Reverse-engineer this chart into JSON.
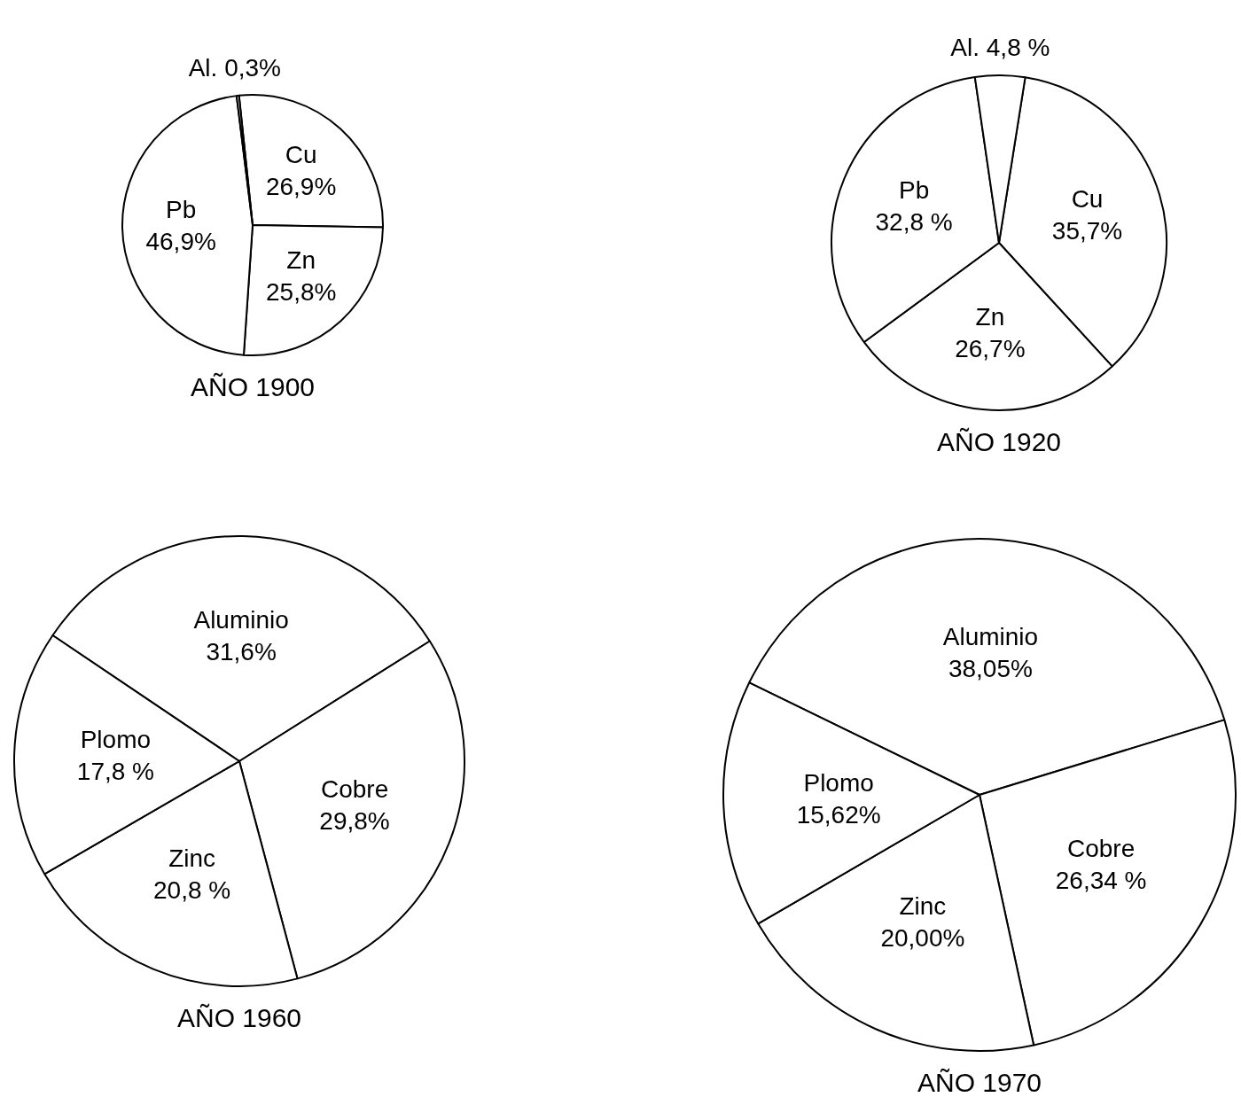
{
  "chart_data": [
    {
      "type": "pie",
      "title": "AÑO 1900",
      "categories": [
        "Cu",
        "Zn",
        "Pb",
        "Al."
      ],
      "values": [
        26.9,
        25.8,
        46.9,
        0.3
      ],
      "value_labels": [
        "26,9%",
        "25,8%",
        "46,9%",
        "0,3%"
      ],
      "colors": [
        "#ffffff",
        "#ffffff",
        "#ffffff",
        "#ffffff"
      ]
    },
    {
      "type": "pie",
      "title": "AÑO 1920",
      "categories": [
        "Cu",
        "Zn",
        "Pb",
        "Al."
      ],
      "values": [
        35.7,
        26.7,
        32.8,
        4.8
      ],
      "value_labels": [
        "35,7%",
        "26,7%",
        "32,8 %",
        "4,8 %"
      ],
      "colors": [
        "#ffffff",
        "#ffffff",
        "#ffffff",
        "#ffffff"
      ]
    },
    {
      "type": "pie",
      "title": "AÑO 1960",
      "categories": [
        "Aluminio",
        "Cobre",
        "Zinc",
        "Plomo"
      ],
      "values": [
        31.6,
        29.8,
        20.8,
        17.8
      ],
      "value_labels": [
        "31,6%",
        "29,8%",
        "20,8 %",
        "17,8 %"
      ],
      "colors": [
        "#ffffff",
        "#ffffff",
        "#ffffff",
        "#ffffff"
      ]
    },
    {
      "type": "pie",
      "title": "AÑO 1970",
      "categories": [
        "Aluminio",
        "Cobre",
        "Zinc",
        "Plomo"
      ],
      "values": [
        38.05,
        26.34,
        20.0,
        15.62
      ],
      "value_labels": [
        "38,05%",
        "26,34 %",
        "20,00%",
        "15,62%"
      ],
      "colors": [
        "#ffffff",
        "#ffffff",
        "#ffffff",
        "#ffffff"
      ]
    }
  ]
}
